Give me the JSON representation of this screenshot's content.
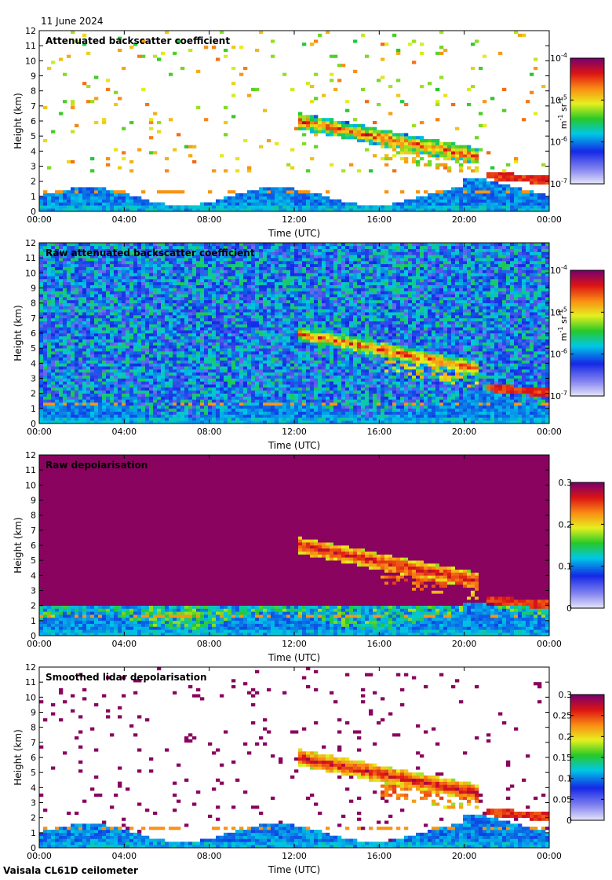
{
  "header": {
    "date": "11 June 2024"
  },
  "footer": {
    "instrument": "Vaisala CL61D ceilometer"
  },
  "chart_data": [
    {
      "type": "heatmap",
      "title": "Attenuated backscatter coefficient",
      "xlabel": "Time (UTC)",
      "ylabel": "Height (km)",
      "x_ticks": [
        "00:00",
        "04:00",
        "08:00",
        "12:00",
        "16:00",
        "20:00",
        "00:00"
      ],
      "y_ticks": [
        "0",
        "1",
        "2",
        "3",
        "4",
        "5",
        "6",
        "7",
        "8",
        "9",
        "10",
        "11",
        "12"
      ],
      "xlim": [
        0,
        24
      ],
      "ylim": [
        0,
        12
      ],
      "colorbar": {
        "scale": "log",
        "range": [
          1e-07,
          0.0001
        ],
        "tick_labels": [
          "10-7",
          "10-6",
          "10-5",
          "10-4"
        ],
        "units": "m-1 sr-1"
      },
      "grid": false
    },
    {
      "type": "heatmap",
      "title": "Raw attenuated backscatter coefficient",
      "xlabel": "Time (UTC)",
      "ylabel": "Height (km)",
      "x_ticks": [
        "00:00",
        "04:00",
        "08:00",
        "12:00",
        "16:00",
        "20:00",
        "00:00"
      ],
      "y_ticks": [
        "0",
        "1",
        "2",
        "3",
        "4",
        "5",
        "6",
        "7",
        "8",
        "9",
        "10",
        "11",
        "12"
      ],
      "xlim": [
        0,
        24
      ],
      "ylim": [
        0,
        12
      ],
      "colorbar": {
        "scale": "log",
        "range": [
          1e-07,
          0.0001
        ],
        "tick_labels": [
          "10-7",
          "10-6",
          "10-5",
          "10-4"
        ],
        "units": "m-1 sr-1"
      },
      "grid": false
    },
    {
      "type": "heatmap",
      "title": "Raw depolarisation",
      "xlabel": "Time (UTC)",
      "ylabel": "Height (km)",
      "x_ticks": [
        "00:00",
        "04:00",
        "08:00",
        "12:00",
        "16:00",
        "20:00",
        "00:00"
      ],
      "y_ticks": [
        "0",
        "1",
        "2",
        "3",
        "4",
        "5",
        "6",
        "7",
        "8",
        "9",
        "10",
        "11",
        "12"
      ],
      "xlim": [
        0,
        24
      ],
      "ylim": [
        0,
        12
      ],
      "colorbar": {
        "scale": "linear",
        "range": [
          0,
          0.3
        ],
        "tick_labels": [
          "0",
          "0.1",
          "0.2",
          "0.3"
        ],
        "units": ""
      },
      "grid": false
    },
    {
      "type": "heatmap",
      "title": "Smoothed lidar depolarisation",
      "xlabel": "Time (UTC)",
      "ylabel": "Height (km)",
      "x_ticks": [
        "00:00",
        "04:00",
        "08:00",
        "12:00",
        "16:00",
        "20:00",
        "00:00"
      ],
      "y_ticks": [
        "0",
        "1",
        "2",
        "3",
        "4",
        "5",
        "6",
        "7",
        "8",
        "9",
        "10",
        "11",
        "12"
      ],
      "xlim": [
        0,
        24
      ],
      "ylim": [
        0,
        12
      ],
      "colorbar": {
        "scale": "linear",
        "range": [
          0,
          0.3
        ],
        "tick_labels": [
          "0",
          "0.05",
          "0.1",
          "0.15",
          "0.2",
          "0.25",
          "0.3"
        ],
        "units": ""
      },
      "grid": false
    }
  ]
}
